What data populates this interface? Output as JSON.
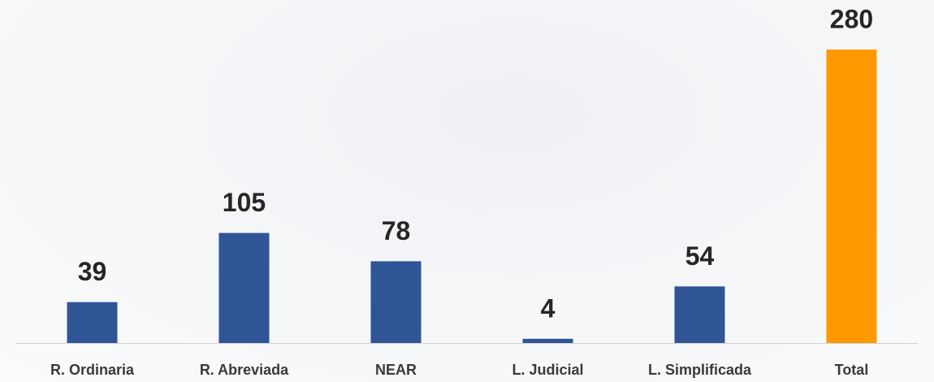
{
  "chart_data": {
    "type": "bar",
    "categories": [
      "R. Ordinaria",
      "R. Abreviada",
      "NEAR",
      "L. Judicial",
      "L. Simplificada",
      "Total"
    ],
    "values": [
      39,
      105,
      78,
      4,
      54,
      280
    ],
    "colors": [
      "#2f5597",
      "#2f5597",
      "#2f5597",
      "#2f5597",
      "#2f5597",
      "#ff9900"
    ]
  }
}
